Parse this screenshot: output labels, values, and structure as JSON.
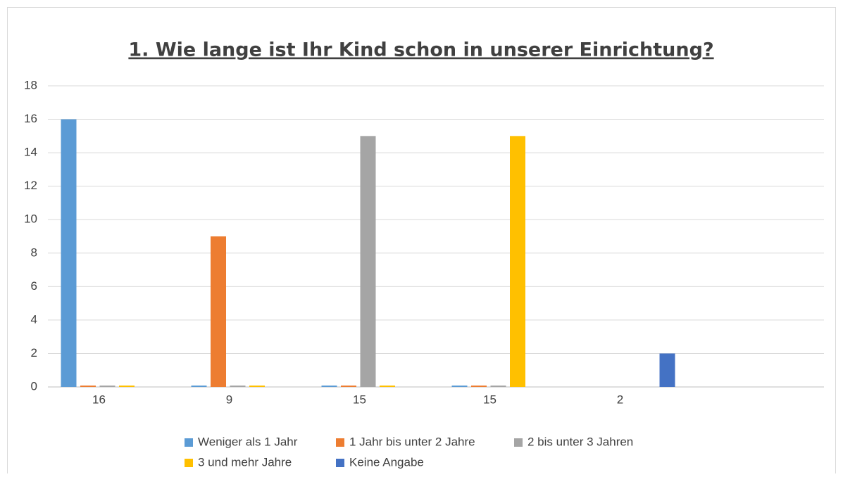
{
  "chart_data": {
    "type": "bar",
    "title": "1. Wie lange ist Ihr Kind schon in unserer Einrichtung?",
    "categories": [
      "16",
      "9",
      "15",
      "15",
      "2",
      null
    ],
    "series": [
      {
        "name": "Weniger als 1 Jahr",
        "color": "#5b9bd5",
        "values": [
          16,
          0,
          0,
          0,
          null,
          null
        ]
      },
      {
        "name": "1 Jahr bis unter 2 Jahre",
        "color": "#ed7d31",
        "values": [
          0,
          9,
          0,
          0,
          null,
          null
        ]
      },
      {
        "name": "2 bis unter 3 Jahren",
        "color": "#a5a5a5",
        "values": [
          0,
          0,
          15,
          0,
          null,
          null
        ]
      },
      {
        "name": "3 und mehr Jahre",
        "color": "#ffc000",
        "values": [
          0,
          0,
          0,
          15,
          null,
          null
        ]
      },
      {
        "name": "Keine Angabe",
        "color": "#4472c4",
        "values": [
          null,
          null,
          null,
          null,
          2,
          null
        ]
      }
    ],
    "ylim": [
      0,
      18
    ],
    "yticks": [
      0,
      2,
      4,
      6,
      8,
      10,
      12,
      14,
      16,
      18
    ],
    "grid": true,
    "legend": "bottom"
  }
}
